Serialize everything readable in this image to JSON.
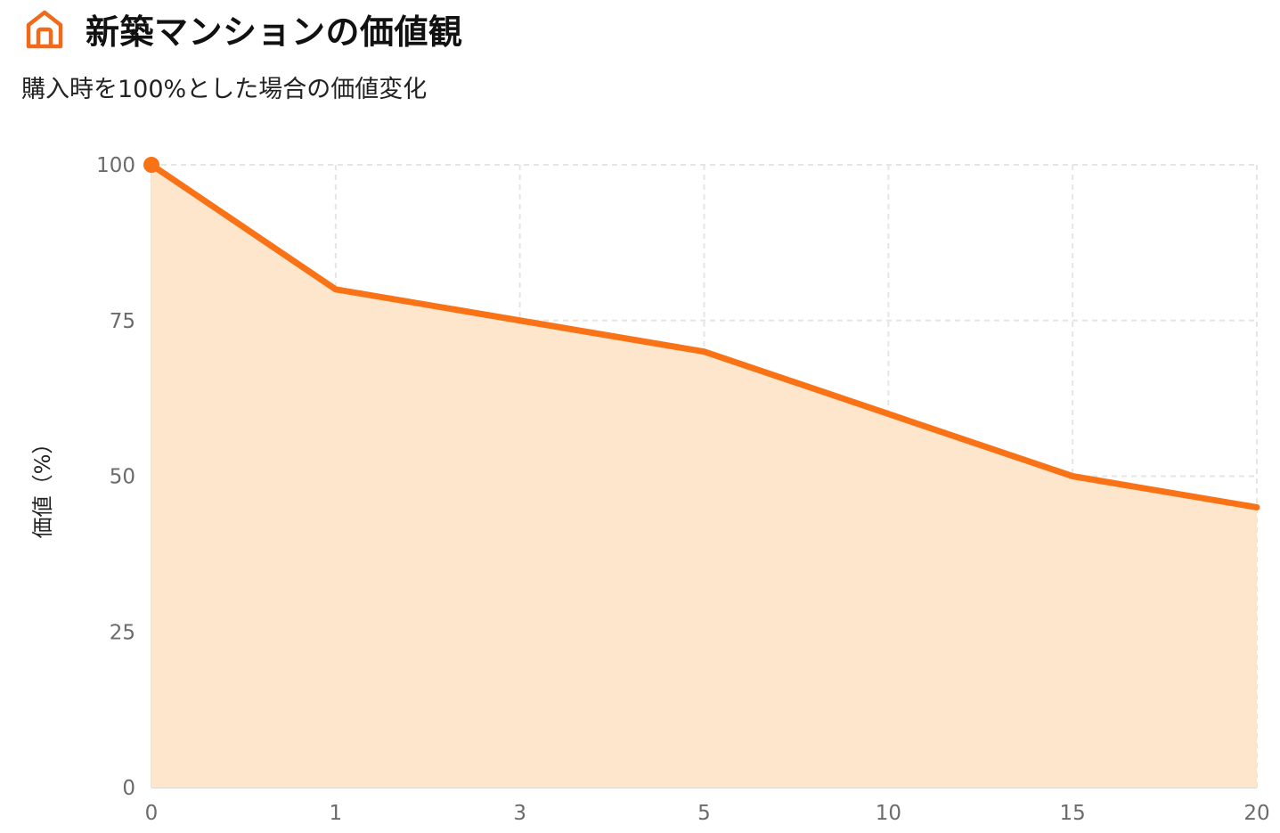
{
  "header": {
    "icon": "home-icon",
    "title": "新築マンションの価値観",
    "subtitle": "購入時を100%とした場合の価値変化"
  },
  "colors": {
    "accent": "#f97316",
    "area_fill": "#fde6cc",
    "grid": "#e5e5e5",
    "tick_text": "#6b6b6b"
  },
  "chart_data": {
    "type": "area",
    "title": "新築マンションの価値観",
    "subtitle": "購入時を100%とした場合の価値変化",
    "xlabel": "",
    "ylabel": "価値（%）",
    "categories": [
      "0",
      "1",
      "3",
      "5",
      "10",
      "15",
      "20"
    ],
    "series": [
      {
        "values": [
          100,
          80,
          75,
          70,
          60,
          50,
          45
        ]
      }
    ],
    "yticks": [
      0,
      25,
      50,
      75,
      100
    ],
    "ylim": [
      0,
      100
    ],
    "grid": true,
    "x_scale": "categorical",
    "highlight_first_point": true
  }
}
